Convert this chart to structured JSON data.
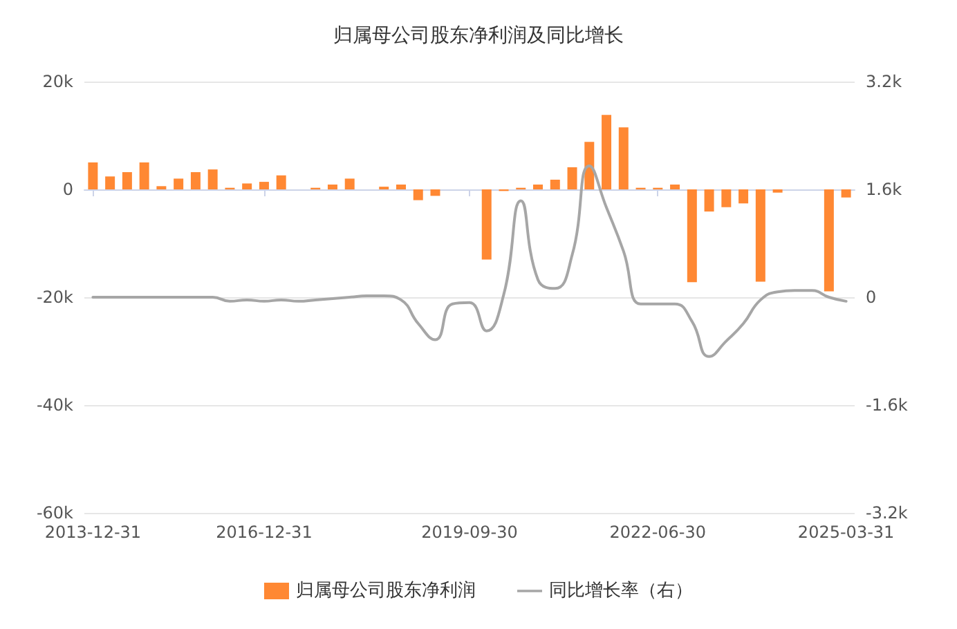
{
  "chart_data": {
    "type": "bar",
    "title": "归属母公司股东净利润及同比增长",
    "categories": [
      "2013-12-31",
      null,
      null,
      null,
      null,
      null,
      null,
      null,
      null,
      null,
      "2016-12-31",
      null,
      null,
      null,
      null,
      null,
      null,
      null,
      null,
      null,
      null,
      null,
      "2019-09-30",
      null,
      null,
      null,
      null,
      null,
      null,
      null,
      null,
      null,
      null,
      "2022-06-30",
      null,
      null,
      null,
      null,
      null,
      null,
      null,
      null,
      null,
      null,
      "2025-03-31"
    ],
    "series": [
      {
        "name": "归属母公司股东净利润",
        "color": "#ff8833",
        "values": [
          5000,
          2400,
          3200,
          5000,
          600,
          2000,
          3200,
          3700,
          300,
          1100,
          1400,
          2600,
          null,
          300,
          900,
          2000,
          null,
          500,
          900,
          -2000,
          -1200,
          null,
          null,
          -13000,
          -300,
          300,
          900,
          1800,
          4100,
          8800,
          13800,
          11500,
          300,
          300,
          900,
          -17200,
          -4100,
          -3300,
          -2600,
          -17100,
          -600,
          null,
          null,
          -18900,
          -1500
        ]
      },
      {
        "name": "同比增长率（右）",
        "type": "line",
        "axis": "y2",
        "color": "#a6a6a6",
        "values": [
          0,
          0,
          0,
          0,
          0,
          0,
          0,
          0,
          -60,
          -40,
          -60,
          -40,
          -60,
          -40,
          -20,
          0,
          20,
          20,
          -40,
          -390,
          -630,
          -100,
          -80,
          -500,
          40,
          1430,
          260,
          130,
          630,
          1950,
          1330,
          680,
          -100,
          -100,
          -100,
          -360,
          -880,
          -650,
          -390,
          -40,
          80,
          100,
          100,
          0,
          -60
        ]
      }
    ],
    "ylim": [
      -60000,
      20000
    ],
    "yticks": [
      {
        "value": -60000,
        "label": "-60k"
      },
      {
        "value": -40000,
        "label": "-40k"
      },
      {
        "value": -20000,
        "label": "-20k"
      },
      0,
      {
        "value": 20000,
        "label": "20k"
      }
    ],
    "y2lim": [
      -3200,
      3200
    ],
    "y2ticks": [
      {
        "value": -3200,
        "label": "-3.2k"
      },
      {
        "value": -1600,
        "label": "-1.6k"
      },
      0,
      {
        "value": 1600,
        "label": "1.6k"
      },
      {
        "value": 3200,
        "label": "3.2k"
      }
    ],
    "grid": "y",
    "legend": "bottom",
    "marker": "none",
    "line_style": "solid"
  }
}
